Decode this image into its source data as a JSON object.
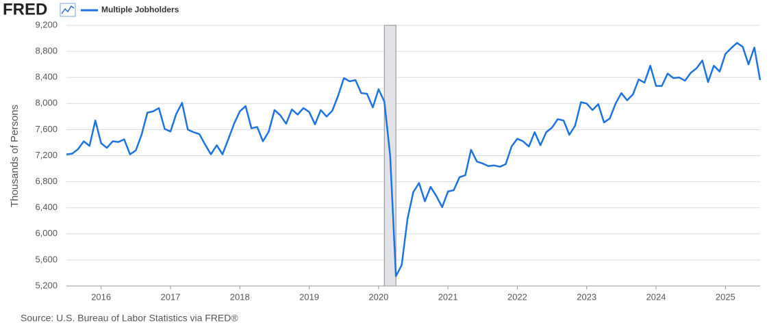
{
  "chart_data": {
    "type": "line",
    "logo": "FRED",
    "y_label": "Thousands of Persons",
    "source": "Source: U.S. Bureau of Labor Statistics via FRED®",
    "x": [
      2015.5,
      2015.583,
      2015.667,
      2015.75,
      2015.833,
      2015.917,
      2016,
      2016.083,
      2016.167,
      2016.25,
      2016.333,
      2016.417,
      2016.5,
      2016.583,
      2016.667,
      2016.75,
      2016.833,
      2016.917,
      2017,
      2017.083,
      2017.167,
      2017.25,
      2017.333,
      2017.417,
      2017.5,
      2017.583,
      2017.667,
      2017.75,
      2017.833,
      2017.917,
      2018,
      2018.083,
      2018.167,
      2018.25,
      2018.333,
      2018.417,
      2018.5,
      2018.583,
      2018.667,
      2018.75,
      2018.833,
      2018.917,
      2019,
      2019.083,
      2019.167,
      2019.25,
      2019.333,
      2019.417,
      2019.5,
      2019.583,
      2019.667,
      2019.75,
      2019.833,
      2019.917,
      2020,
      2020.083,
      2020.167,
      2020.25,
      2020.333,
      2020.417,
      2020.5,
      2020.583,
      2020.667,
      2020.75,
      2020.833,
      2020.917,
      2021,
      2021.083,
      2021.167,
      2021.25,
      2021.333,
      2021.417,
      2021.5,
      2021.583,
      2021.667,
      2021.75,
      2021.833,
      2021.917,
      2022,
      2022.083,
      2022.167,
      2022.25,
      2022.333,
      2022.417,
      2022.5,
      2022.583,
      2022.667,
      2022.75,
      2022.833,
      2022.917,
      2023,
      2023.083,
      2023.167,
      2023.25,
      2023.333,
      2023.417,
      2023.5,
      2023.583,
      2023.667,
      2023.75,
      2023.833,
      2023.917,
      2024,
      2024.083,
      2024.167,
      2024.25,
      2024.333,
      2024.417,
      2024.5,
      2024.583,
      2024.667,
      2024.75,
      2024.833,
      2024.917,
      2025,
      2025.083,
      2025.167,
      2025.25,
      2025.333,
      2025.417,
      2025.5
    ],
    "series": [
      {
        "name": "Multiple Jobholders",
        "color": "#1a73e0",
        "values": [
          7220,
          7230,
          7300,
          7420,
          7350,
          7740,
          7390,
          7320,
          7420,
          7410,
          7450,
          7220,
          7280,
          7520,
          7860,
          7880,
          7930,
          7610,
          7570,
          7840,
          8010,
          7600,
          7560,
          7530,
          7370,
          7220,
          7360,
          7220,
          7450,
          7690,
          7880,
          7960,
          7620,
          7640,
          7420,
          7570,
          7900,
          7820,
          7690,
          7910,
          7830,
          7930,
          7870,
          7680,
          7900,
          7800,
          7890,
          8120,
          8390,
          8340,
          8360,
          8160,
          8150,
          7940,
          8220,
          8030,
          7200,
          5350,
          5520,
          6230,
          6640,
          6780,
          6500,
          6720,
          6580,
          6410,
          6650,
          6670,
          6870,
          6900,
          7290,
          7110,
          7080,
          7040,
          7050,
          7030,
          7070,
          7340,
          7460,
          7420,
          7340,
          7560,
          7360,
          7560,
          7630,
          7760,
          7740,
          7520,
          7660,
          8020,
          8000,
          7900,
          7990,
          7710,
          7770,
          8000,
          8160,
          8050,
          8140,
          8370,
          8320,
          8580,
          8270,
          8270,
          8460,
          8390,
          8400,
          8350,
          8470,
          8540,
          8660,
          8330,
          8580,
          8490,
          8760,
          8850,
          8930,
          8870,
          8600,
          8860,
          8360
        ]
      }
    ],
    "recessions": [
      [
        2020.083,
        2020.25
      ]
    ],
    "xlim": [
      2015.5,
      2025.5
    ],
    "xticks": [
      2016,
      2017,
      2018,
      2019,
      2020,
      2021,
      2022,
      2023,
      2024,
      2025
    ],
    "ylim": [
      5200,
      9200
    ],
    "yticks": [
      {
        "value": 5200,
        "label": "5,200"
      },
      {
        "value": 5600,
        "label": "5,600"
      },
      {
        "value": 6000,
        "label": "6,000"
      },
      {
        "value": 6400,
        "label": "6,400"
      },
      {
        "value": 6800,
        "label": "6,800"
      },
      {
        "value": 7200,
        "label": "7,200"
      },
      {
        "value": 7600,
        "label": "7,600"
      },
      {
        "value": 8000,
        "label": "8,000"
      },
      {
        "value": 8400,
        "label": "8,400"
      },
      {
        "value": 8800,
        "label": "8,800"
      },
      {
        "value": 9200,
        "label": "9,200"
      }
    ],
    "grid": true
  }
}
